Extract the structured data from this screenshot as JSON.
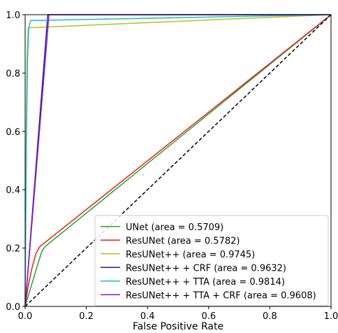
{
  "chart_data": {
    "type": "line",
    "title": "",
    "xlabel": "False Positive Rate",
    "ylabel": "",
    "xlim": [
      0.0,
      1.0
    ],
    "ylim": [
      0.0,
      1.0
    ],
    "x_ticks": [
      "0.0",
      "0.2",
      "0.4",
      "0.6",
      "0.8",
      "1.0"
    ],
    "y_ticks": [
      "0.0",
      "0.2",
      "0.4",
      "0.6",
      "0.8",
      "1.0"
    ],
    "grid": false,
    "legend_position": "lower right",
    "series": [
      {
        "name": "UNet (area = 0.5709)",
        "color": "#2ca02c",
        "x": [
          0.0,
          0.02,
          0.04,
          0.055,
          0.065,
          1.0
        ],
        "y": [
          0.0,
          0.07,
          0.14,
          0.19,
          0.205,
          1.0
        ]
      },
      {
        "name": "ResUNet (area = 0.5782)",
        "color": "#e32222",
        "x": [
          0.0,
          0.01,
          0.022,
          0.035,
          0.048,
          1.0
        ],
        "y": [
          0.0,
          0.07,
          0.13,
          0.18,
          0.205,
          1.0
        ]
      },
      {
        "name": "ResUNet++ (area = 0.9745)",
        "color": "#bcbd22",
        "x": [
          0.0,
          0.003,
          0.006,
          0.01,
          1.0
        ],
        "y": [
          0.0,
          0.55,
          0.85,
          0.955,
          1.0
        ]
      },
      {
        "name": "ResUNet++ + CRF (area = 0.9632)",
        "color": "#1f1fa0",
        "x": [
          0.0,
          0.074,
          1.0
        ],
        "y": [
          0.0,
          1.0,
          1.0
        ]
      },
      {
        "name": "ResUNet++ + TTA (area = 0.9814)",
        "color": "#17becf",
        "x": [
          0.0,
          0.004,
          0.008,
          0.012,
          0.018,
          1.0
        ],
        "y": [
          0.0,
          0.55,
          0.85,
          0.955,
          0.98,
          1.0
        ]
      },
      {
        "name": "ResUNet++ + TTA + CRF (area = 0.9608)",
        "color": "#9418c8",
        "x": [
          0.0,
          0.078,
          1.0
        ],
        "y": [
          0.0,
          1.0,
          1.0
        ]
      }
    ],
    "reference_line": {
      "x": [
        0.0,
        1.0
      ],
      "y": [
        0.0,
        1.0
      ],
      "color": "#000000",
      "style": "dashed"
    }
  }
}
